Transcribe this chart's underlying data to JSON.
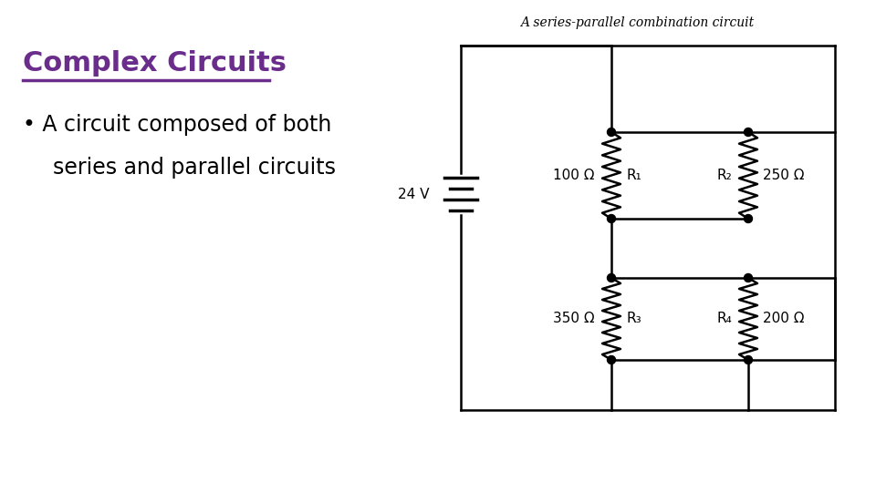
{
  "title": "Complex Circuits",
  "title_color": "#6B2D8B",
  "bullet_text_line1": "A circuit composed of both",
  "bullet_text_line2": "series and parallel circuits",
  "circuit_caption": "A series-parallel combination circuit",
  "bg_color": "#ffffff",
  "text_color": "#000000",
  "circuit_color": "#000000",
  "battery_voltage": "24 V",
  "r1_label": "R₁",
  "r1_value": "100 Ω",
  "r2_label": "R₂",
  "r2_value": "250 Ω",
  "r3_label": "R₃",
  "r3_value": "350 Ω",
  "r4_label": "R₄",
  "r4_value": "200 Ω"
}
